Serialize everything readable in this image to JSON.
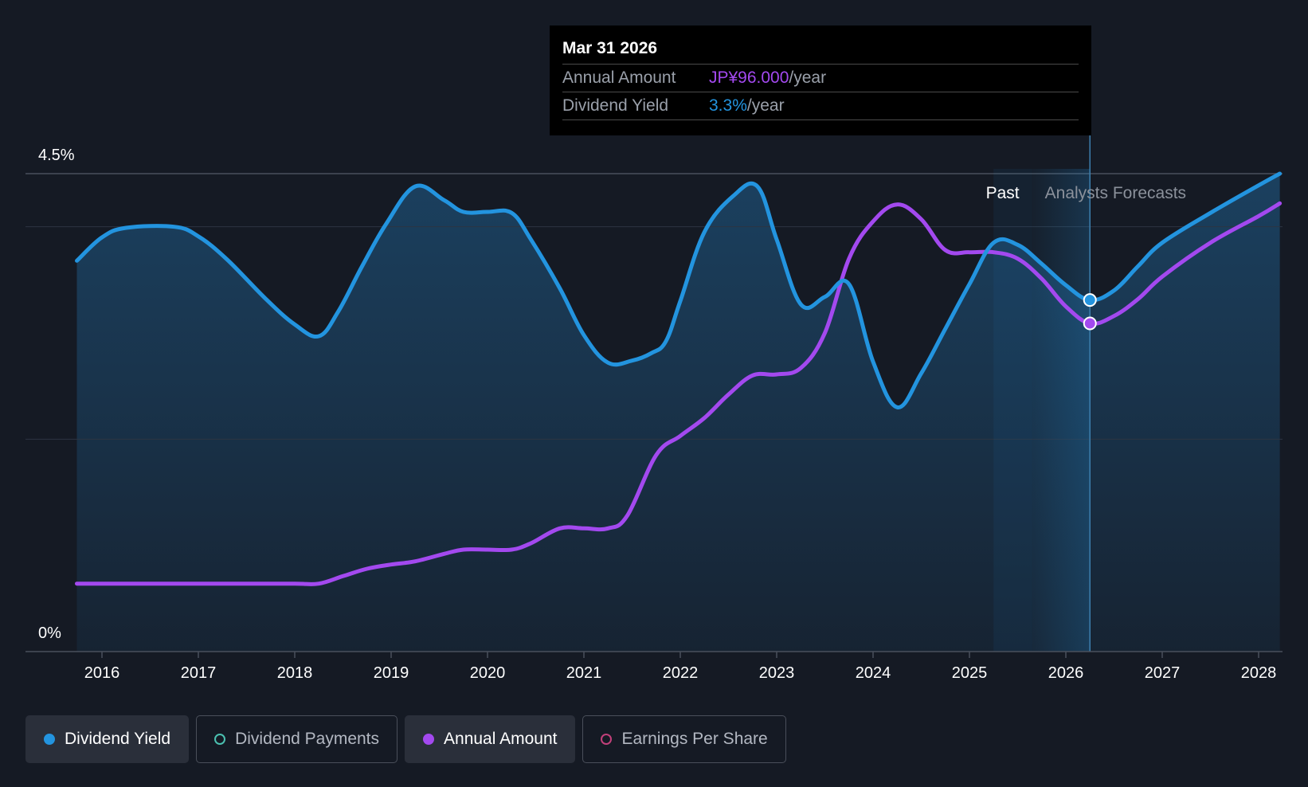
{
  "tooltip": {
    "date": "Mar 31 2026",
    "rows": [
      {
        "label": "Annual Amount",
        "value": "JP¥96.000",
        "unit": "/year"
      },
      {
        "label": "Dividend Yield",
        "value": "3.3%",
        "unit": "/year"
      }
    ]
  },
  "legend": [
    {
      "label": "Dividend Yield",
      "active": true,
      "color": "#2394df"
    },
    {
      "label": "Dividend Payments",
      "active": false,
      "color": "#4bc0b0"
    },
    {
      "label": "Annual Amount",
      "active": true,
      "color": "#a349ef"
    },
    {
      "label": "Earnings Per Share",
      "active": false,
      "color": "#c2407a"
    }
  ],
  "colors": {
    "yield": "#2394df",
    "amount": "#a349ef",
    "amount_value": "#a349ef",
    "yield_value": "#2394df"
  },
  "chart_data": {
    "type": "line",
    "title": "",
    "ylabel_top": "4.5%",
    "ylabel_bottom": "0%",
    "ylim": [
      0,
      4.5
    ],
    "xlim": [
      2015.78,
      2028.22
    ],
    "x_ticks": [
      "2016",
      "2017",
      "2018",
      "2019",
      "2020",
      "2021",
      "2022",
      "2023",
      "2024",
      "2025",
      "2026",
      "2027",
      "2028"
    ],
    "x_tick_values": [
      2016,
      2017,
      2018,
      2019,
      2020,
      2021,
      2022,
      2023,
      2024,
      2025,
      2026,
      2027,
      2028
    ],
    "gridlines": [
      4.5,
      4.0,
      2.0
    ],
    "past_label": "Past",
    "forecast_label": "Analysts Forecasts",
    "past_band_start": 2025.25,
    "forecast_start": 2025.65,
    "marker_x": 2026.25,
    "series": [
      {
        "name": "Dividend Yield",
        "unit": "%",
        "points": [
          [
            2015.74,
            3.68
          ],
          [
            2016.0,
            3.9
          ],
          [
            2016.25,
            3.99
          ],
          [
            2016.75,
            4.0
          ],
          [
            2017.0,
            3.91
          ],
          [
            2017.3,
            3.69
          ],
          [
            2017.7,
            3.32
          ],
          [
            2018.0,
            3.08
          ],
          [
            2018.25,
            2.97
          ],
          [
            2018.45,
            3.2
          ],
          [
            2018.7,
            3.63
          ],
          [
            2018.95,
            4.03
          ],
          [
            2019.25,
            4.38
          ],
          [
            2019.55,
            4.25
          ],
          [
            2019.75,
            4.14
          ],
          [
            2020.0,
            4.14
          ],
          [
            2020.25,
            4.13
          ],
          [
            2020.45,
            3.88
          ],
          [
            2020.75,
            3.42
          ],
          [
            2021.0,
            2.98
          ],
          [
            2021.25,
            2.72
          ],
          [
            2021.5,
            2.74
          ],
          [
            2021.7,
            2.81
          ],
          [
            2021.85,
            2.92
          ],
          [
            2022.0,
            3.3
          ],
          [
            2022.25,
            3.95
          ],
          [
            2022.55,
            4.29
          ],
          [
            2022.8,
            4.38
          ],
          [
            2023.0,
            3.88
          ],
          [
            2023.25,
            3.27
          ],
          [
            2023.5,
            3.34
          ],
          [
            2023.75,
            3.46
          ],
          [
            2024.0,
            2.73
          ],
          [
            2024.25,
            2.3
          ],
          [
            2024.5,
            2.62
          ],
          [
            2024.75,
            3.04
          ],
          [
            2025.0,
            3.46
          ],
          [
            2025.25,
            3.85
          ],
          [
            2025.5,
            3.83
          ],
          [
            2025.75,
            3.65
          ],
          [
            2026.0,
            3.45
          ],
          [
            2026.25,
            3.31
          ],
          [
            2026.5,
            3.4
          ],
          [
            2026.75,
            3.63
          ],
          [
            2027.0,
            3.85
          ],
          [
            2027.5,
            4.13
          ],
          [
            2028.0,
            4.39
          ],
          [
            2028.22,
            4.5
          ]
        ]
      },
      {
        "name": "Annual Amount",
        "unit": "JP¥",
        "points": [
          [
            2015.74,
            0.64
          ],
          [
            2016.5,
            0.64
          ],
          [
            2017.5,
            0.64
          ],
          [
            2018.0,
            0.64
          ],
          [
            2018.25,
            0.64
          ],
          [
            2018.5,
            0.71
          ],
          [
            2018.75,
            0.78
          ],
          [
            2019.0,
            0.82
          ],
          [
            2019.25,
            0.85
          ],
          [
            2019.55,
            0.92
          ],
          [
            2019.75,
            0.96
          ],
          [
            2020.0,
            0.96
          ],
          [
            2020.25,
            0.96
          ],
          [
            2020.45,
            1.02
          ],
          [
            2020.75,
            1.16
          ],
          [
            2021.0,
            1.16
          ],
          [
            2021.25,
            1.16
          ],
          [
            2021.45,
            1.28
          ],
          [
            2021.75,
            1.85
          ],
          [
            2022.0,
            2.03
          ],
          [
            2022.25,
            2.2
          ],
          [
            2022.5,
            2.42
          ],
          [
            2022.75,
            2.6
          ],
          [
            2023.0,
            2.61
          ],
          [
            2023.25,
            2.67
          ],
          [
            2023.5,
            3.0
          ],
          [
            2023.75,
            3.7
          ],
          [
            2024.0,
            4.05
          ],
          [
            2024.25,
            4.21
          ],
          [
            2024.5,
            4.07
          ],
          [
            2024.75,
            3.78
          ],
          [
            2025.0,
            3.76
          ],
          [
            2025.25,
            3.76
          ],
          [
            2025.5,
            3.7
          ],
          [
            2025.75,
            3.51
          ],
          [
            2026.0,
            3.25
          ],
          [
            2026.25,
            3.09
          ],
          [
            2026.5,
            3.16
          ],
          [
            2026.75,
            3.32
          ],
          [
            2027.0,
            3.53
          ],
          [
            2027.5,
            3.85
          ],
          [
            2028.0,
            4.1
          ],
          [
            2028.22,
            4.22
          ]
        ]
      }
    ]
  }
}
